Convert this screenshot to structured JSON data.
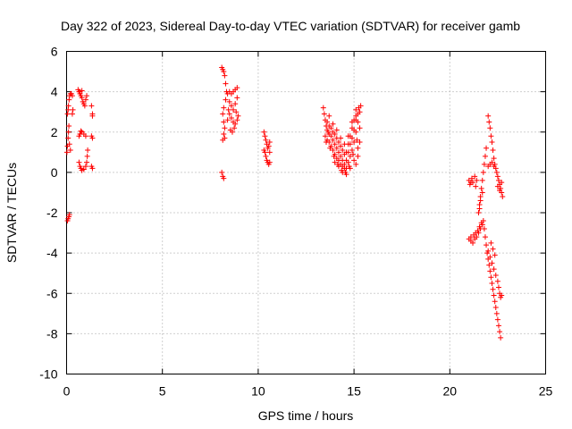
{
  "chart_data": {
    "type": "scatter",
    "title": "Day 322 of 2023, Sidereal Day-to-day VTEC variation (SDTVAR) for receiver gamb",
    "xlabel": "GPS time / hours",
    "ylabel": "SDTVAR / TECUs",
    "xlim": [
      0,
      25
    ],
    "ylim": [
      -10,
      6
    ],
    "xticks": [
      "0",
      "5",
      "10",
      "15",
      "20",
      "25"
    ],
    "yticks": [
      "-10",
      "-8",
      "-6",
      "-4",
      "-2",
      "0",
      "2",
      "4",
      "6"
    ],
    "grid": true,
    "marker": "+",
    "color": "#ff0000",
    "series": [
      {
        "name": "SDTVAR",
        "points": [
          [
            0.02,
            1.0
          ],
          [
            0.05,
            1.3
          ],
          [
            0.08,
            1.7
          ],
          [
            0.1,
            2.0
          ],
          [
            0.12,
            2.3
          ],
          [
            0.15,
            1.4
          ],
          [
            0.2,
            1.1
          ],
          [
            0.05,
            2.9
          ],
          [
            0.08,
            3.1
          ],
          [
            0.1,
            3.3
          ],
          [
            0.13,
            3.6
          ],
          [
            0.16,
            3.8
          ],
          [
            0.2,
            3.9
          ],
          [
            0.25,
            3.9
          ],
          [
            0.3,
            3.8
          ],
          [
            0.33,
            3.1
          ],
          [
            0.3,
            2.9
          ],
          [
            0.05,
            -2.4
          ],
          [
            0.08,
            -2.3
          ],
          [
            0.12,
            -2.2
          ],
          [
            0.15,
            -2.1
          ],
          [
            0.6,
            4.1
          ],
          [
            0.65,
            4.0
          ],
          [
            0.7,
            3.9
          ],
          [
            0.75,
            3.8
          ],
          [
            0.8,
            3.7
          ],
          [
            0.85,
            3.5
          ],
          [
            0.9,
            3.4
          ],
          [
            0.95,
            3.3
          ],
          [
            1.0,
            3.6
          ],
          [
            1.05,
            3.8
          ],
          [
            0.7,
            4.0
          ],
          [
            0.8,
            4.05
          ],
          [
            0.65,
            1.8
          ],
          [
            0.7,
            1.9
          ],
          [
            0.8,
            2.0
          ],
          [
            0.9,
            1.9
          ],
          [
            1.0,
            1.8
          ],
          [
            0.75,
            2.05
          ],
          [
            0.65,
            0.5
          ],
          [
            0.7,
            0.3
          ],
          [
            0.75,
            0.2
          ],
          [
            0.8,
            0.1
          ],
          [
            0.9,
            0.15
          ],
          [
            1.0,
            0.3
          ],
          [
            1.05,
            0.5
          ],
          [
            1.08,
            0.8
          ],
          [
            1.1,
            1.1
          ],
          [
            1.3,
            3.3
          ],
          [
            1.35,
            2.8
          ],
          [
            1.35,
            2.9
          ],
          [
            1.35,
            1.7
          ],
          [
            1.3,
            1.8
          ],
          [
            1.35,
            0.2
          ],
          [
            1.3,
            0.3
          ],
          [
            8.1,
            5.2
          ],
          [
            8.15,
            5.1
          ],
          [
            8.2,
            5.0
          ],
          [
            8.25,
            4.8
          ],
          [
            8.3,
            4.4
          ],
          [
            8.35,
            4.0
          ],
          [
            8.3,
            3.6
          ],
          [
            8.2,
            3.2
          ],
          [
            8.15,
            2.9
          ],
          [
            8.2,
            2.5
          ],
          [
            8.25,
            2.2
          ],
          [
            8.2,
            1.9
          ],
          [
            8.15,
            1.6
          ],
          [
            8.25,
            1.7
          ],
          [
            8.1,
            0.0
          ],
          [
            8.15,
            -0.2
          ],
          [
            8.2,
            -0.3
          ],
          [
            8.4,
            3.9
          ],
          [
            8.5,
            4.0
          ],
          [
            8.6,
            3.9
          ],
          [
            8.7,
            4.0
          ],
          [
            8.8,
            4.1
          ],
          [
            8.9,
            4.2
          ],
          [
            8.5,
            3.5
          ],
          [
            8.6,
            3.3
          ],
          [
            8.7,
            3.1
          ],
          [
            8.8,
            3.4
          ],
          [
            8.9,
            3.7
          ],
          [
            8.5,
            2.9
          ],
          [
            8.6,
            2.7
          ],
          [
            8.7,
            2.5
          ],
          [
            8.8,
            2.4
          ],
          [
            8.9,
            2.6
          ],
          [
            8.55,
            2.1
          ],
          [
            8.65,
            2.0
          ],
          [
            8.75,
            2.2
          ],
          [
            8.45,
            3.1
          ],
          [
            8.85,
            3.0
          ],
          [
            8.95,
            2.8
          ],
          [
            8.4,
            2.6
          ],
          [
            10.3,
            2.0
          ],
          [
            10.35,
            1.8
          ],
          [
            10.4,
            1.6
          ],
          [
            10.45,
            1.4
          ],
          [
            10.5,
            1.2
          ],
          [
            10.55,
            1.3
          ],
          [
            10.6,
            1.5
          ],
          [
            10.35,
            1.0
          ],
          [
            10.4,
            0.8
          ],
          [
            10.45,
            0.6
          ],
          [
            10.5,
            0.5
          ],
          [
            10.55,
            0.4
          ],
          [
            10.6,
            0.5
          ],
          [
            10.3,
            1.1
          ],
          [
            10.6,
            1.0
          ],
          [
            13.4,
            3.2
          ],
          [
            13.45,
            2.9
          ],
          [
            13.5,
            2.6
          ],
          [
            13.55,
            2.3
          ],
          [
            13.6,
            2.1
          ],
          [
            13.65,
            2.0
          ],
          [
            13.7,
            1.9
          ],
          [
            13.8,
            1.8
          ],
          [
            13.9,
            1.6
          ],
          [
            14.0,
            1.4
          ],
          [
            14.1,
            1.2
          ],
          [
            14.2,
            1.0
          ],
          [
            14.3,
            0.8
          ],
          [
            14.4,
            0.6
          ],
          [
            14.5,
            0.4
          ],
          [
            14.6,
            0.2
          ],
          [
            14.7,
            0.5
          ],
          [
            14.8,
            0.8
          ],
          [
            14.9,
            1.1
          ],
          [
            15.0,
            1.5
          ],
          [
            15.1,
            2.0
          ],
          [
            15.2,
            2.5
          ],
          [
            15.3,
            3.0
          ],
          [
            15.35,
            3.3
          ],
          [
            13.5,
            1.8
          ],
          [
            13.6,
            1.6
          ],
          [
            13.7,
            1.5
          ],
          [
            13.8,
            1.3
          ],
          [
            13.9,
            1.1
          ],
          [
            14.0,
            0.9
          ],
          [
            14.1,
            0.7
          ],
          [
            14.2,
            0.6
          ],
          [
            14.3,
            0.4
          ],
          [
            14.4,
            0.3
          ],
          [
            14.5,
            0.2
          ],
          [
            14.6,
            0.6
          ],
          [
            14.7,
            1.0
          ],
          [
            14.8,
            1.4
          ],
          [
            14.9,
            1.7
          ],
          [
            15.0,
            2.1
          ],
          [
            15.1,
            2.6
          ],
          [
            15.2,
            2.9
          ],
          [
            13.6,
            2.5
          ],
          [
            13.7,
            2.3
          ],
          [
            13.8,
            2.2
          ],
          [
            13.9,
            2.0
          ],
          [
            14.0,
            1.9
          ],
          [
            14.1,
            1.7
          ],
          [
            14.2,
            1.5
          ],
          [
            14.3,
            1.3
          ],
          [
            14.4,
            1.1
          ],
          [
            14.5,
            0.9
          ],
          [
            14.6,
            1.0
          ],
          [
            14.7,
            1.4
          ],
          [
            14.8,
            1.8
          ],
          [
            14.9,
            2.2
          ],
          [
            15.0,
            2.6
          ],
          [
            15.1,
            3.1
          ],
          [
            15.25,
            3.2
          ],
          [
            13.7,
            2.8
          ],
          [
            13.9,
            2.4
          ],
          [
            14.1,
            2.1
          ],
          [
            14.3,
            1.7
          ],
          [
            14.5,
            1.4
          ],
          [
            14.7,
            1.8
          ],
          [
            14.9,
            2.5
          ],
          [
            15.1,
            2.8
          ],
          [
            14.0,
            0.5
          ],
          [
            14.2,
            0.3
          ],
          [
            14.4,
            0.0
          ],
          [
            14.6,
            -0.1
          ],
          [
            14.8,
            0.2
          ],
          [
            15.0,
            0.6
          ],
          [
            15.2,
            1.2
          ],
          [
            13.55,
            1.5
          ],
          [
            13.75,
            1.2
          ],
          [
            13.95,
            0.8
          ],
          [
            14.15,
            0.4
          ],
          [
            14.35,
            0.1
          ],
          [
            14.55,
            0.0
          ],
          [
            14.75,
            0.3
          ],
          [
            14.95,
            0.9
          ],
          [
            15.15,
            1.6
          ],
          [
            15.3,
            2.2
          ],
          [
            15.3,
            1.5
          ],
          [
            15.2,
            0.8
          ],
          [
            15.1,
            0.4
          ],
          [
            21.0,
            -0.4
          ],
          [
            21.05,
            -0.6
          ],
          [
            21.1,
            -0.5
          ],
          [
            21.15,
            -0.3
          ],
          [
            21.2,
            -0.5
          ],
          [
            21.3,
            -0.2
          ],
          [
            21.35,
            -0.7
          ],
          [
            21.4,
            -0.4
          ],
          [
            21.0,
            -3.3
          ],
          [
            21.1,
            -3.4
          ],
          [
            21.2,
            -3.5
          ],
          [
            21.3,
            -3.3
          ],
          [
            21.4,
            -3.2
          ],
          [
            21.5,
            -3.0
          ],
          [
            21.6,
            -2.8
          ],
          [
            21.7,
            -2.6
          ],
          [
            21.75,
            -2.4
          ],
          [
            21.1,
            -3.2
          ],
          [
            21.25,
            -3.1
          ],
          [
            21.35,
            -3.0
          ],
          [
            21.45,
            -2.9
          ],
          [
            21.55,
            -2.7
          ],
          [
            21.65,
            -2.5
          ],
          [
            21.5,
            -2.0
          ],
          [
            21.55,
            -1.6
          ],
          [
            21.6,
            -1.2
          ],
          [
            21.65,
            -0.8
          ],
          [
            21.7,
            -0.4
          ],
          [
            21.75,
            0.0
          ],
          [
            21.8,
            0.4
          ],
          [
            21.85,
            0.8
          ],
          [
            21.9,
            1.2
          ],
          [
            21.55,
            -1.8
          ],
          [
            21.6,
            -1.4
          ],
          [
            21.7,
            -1.0
          ],
          [
            22.0,
            2.8
          ],
          [
            22.05,
            2.5
          ],
          [
            22.1,
            2.2
          ],
          [
            22.15,
            1.8
          ],
          [
            22.2,
            1.5
          ],
          [
            22.25,
            1.1
          ],
          [
            22.3,
            0.7
          ],
          [
            22.35,
            0.4
          ],
          [
            22.0,
            0.3
          ],
          [
            22.1,
            0.4
          ],
          [
            22.2,
            0.5
          ],
          [
            22.3,
            0.3
          ],
          [
            22.4,
            0.2
          ],
          [
            22.45,
            0.0
          ],
          [
            22.5,
            -0.2
          ],
          [
            22.55,
            -0.4
          ],
          [
            22.6,
            -0.6
          ],
          [
            22.65,
            -0.8
          ],
          [
            22.7,
            -1.0
          ],
          [
            22.75,
            -1.2
          ],
          [
            22.5,
            -0.7
          ],
          [
            22.6,
            -0.9
          ],
          [
            22.7,
            -0.5
          ],
          [
            21.8,
            -2.8
          ],
          [
            21.85,
            -3.2
          ],
          [
            21.9,
            -3.6
          ],
          [
            21.95,
            -4.0
          ],
          [
            22.0,
            -4.3
          ],
          [
            22.05,
            -4.6
          ],
          [
            22.1,
            -4.9
          ],
          [
            22.15,
            -5.2
          ],
          [
            22.2,
            -5.5
          ],
          [
            22.25,
            -5.8
          ],
          [
            22.3,
            -6.1
          ],
          [
            22.35,
            -6.4
          ],
          [
            22.4,
            -6.7
          ],
          [
            22.45,
            -7.0
          ],
          [
            22.5,
            -7.3
          ],
          [
            22.55,
            -7.6
          ],
          [
            22.6,
            -7.9
          ],
          [
            22.65,
            -8.2
          ],
          [
            22.0,
            -3.9
          ],
          [
            22.1,
            -4.2
          ],
          [
            22.2,
            -4.5
          ],
          [
            22.3,
            -4.8
          ],
          [
            22.4,
            -5.1
          ],
          [
            22.5,
            -5.4
          ],
          [
            22.55,
            -5.7
          ],
          [
            22.6,
            -6.0
          ],
          [
            22.65,
            -6.2
          ],
          [
            22.7,
            -6.1
          ],
          [
            22.15,
            -3.5
          ],
          [
            22.25,
            -3.8
          ],
          [
            22.35,
            -4.1
          ]
        ]
      }
    ]
  }
}
